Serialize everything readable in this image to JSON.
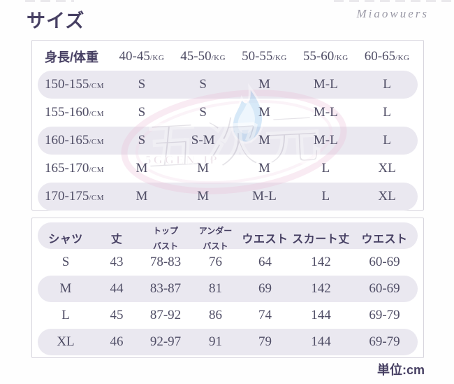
{
  "page": {
    "title": "サイズ",
    "brand_signature": "Miaowuers",
    "unit_note": "単位:cm"
  },
  "colors": {
    "heading_text": "#474063",
    "data_text": "#504e66",
    "row_stripe": "#eae8f0",
    "panel_border": "#d6d4dd",
    "watermark_pink": "#e9b7d3",
    "watermark_gray": "#aaa4b2",
    "watermark_blue": "#8ec2ea"
  },
  "size_chart": {
    "corner_label": "身長/体重",
    "weight_columns": [
      {
        "range": "40-45",
        "unit": "/KG"
      },
      {
        "range": "45-50",
        "unit": "/KG"
      },
      {
        "range": "50-55",
        "unit": "/KG"
      },
      {
        "range": "55-60",
        "unit": "/KG"
      },
      {
        "range": "60-65",
        "unit": "/KG"
      }
    ],
    "rows": [
      {
        "height": "150-155",
        "unit": "/CM",
        "sizes": [
          "S",
          "S",
          "M",
          "M-L",
          "L"
        ]
      },
      {
        "height": "155-160",
        "unit": "/CM",
        "sizes": [
          "S",
          "S",
          "M",
          "M-L",
          "L"
        ]
      },
      {
        "height": "160-165",
        "unit": "/CM",
        "sizes": [
          "S",
          "S-M",
          "M",
          "M-L",
          "L"
        ]
      },
      {
        "height": "165-170",
        "unit": "/CM",
        "sizes": [
          "M",
          "M",
          "M",
          "L",
          "XL"
        ]
      },
      {
        "height": "170-175",
        "unit": "/CM",
        "sizes": [
          "M",
          "M",
          "M-L",
          "L",
          "XL"
        ]
      }
    ]
  },
  "measurement_chart": {
    "columns": [
      "シャツ",
      "丈",
      "トップ\nバスト",
      "アンダー\nバスト",
      "ウエスト",
      "スカート丈",
      "ウエスト"
    ],
    "rows": [
      {
        "size": "S",
        "values": [
          "43",
          "78-83",
          "76",
          "64",
          "142",
          "60-69"
        ]
      },
      {
        "size": "M",
        "values": [
          "44",
          "83-87",
          "81",
          "69",
          "142",
          "60-69"
        ]
      },
      {
        "size": "L",
        "values": [
          "45",
          "87-92",
          "86",
          "74",
          "144",
          "69-79"
        ]
      },
      {
        "size": "XL",
        "values": [
          "46",
          "92-97",
          "91",
          "79",
          "144",
          "69-79"
        ]
      }
    ]
  },
  "watermark": {
    "kanji": "五次元",
    "site": "5GGEN.JP"
  }
}
